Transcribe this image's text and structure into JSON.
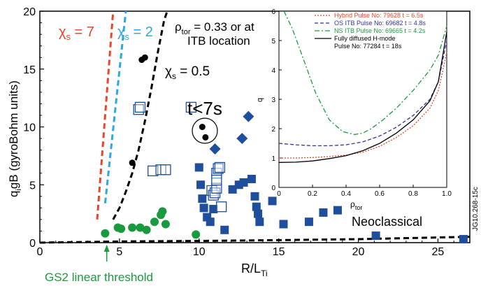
{
  "chart_data": [
    {
      "type": "scatter",
      "xlabel": "R/L",
      "xlabel_sub": "Ti",
      "ylabel": "q",
      "ylabel_sub": "i",
      "ylabel_rest": "gB (gyroBohm units)",
      "xlim": [
        0,
        27
      ],
      "ylim": [
        0,
        20
      ],
      "xticks": [
        0,
        5,
        10,
        15,
        20,
        25
      ],
      "yticks": [
        0,
        5,
        10,
        15,
        20
      ],
      "grid": false,
      "series": [
        {
          "style": "green-filled-circle",
          "color": "#1a9a3e",
          "points": [
            [
              4.1,
              0.8
            ],
            [
              4.9,
              1.3
            ],
            [
              5.1,
              1.2
            ],
            [
              5.8,
              1.3
            ],
            [
              6.3,
              1.3
            ],
            [
              6.7,
              1.1
            ],
            [
              7.2,
              1.8
            ],
            [
              7.6,
              2.4
            ],
            [
              7.7,
              2.7
            ],
            [
              7.9,
              1.6
            ],
            [
              9.8,
              0.7
            ]
          ]
        },
        {
          "style": "blue-filled-square",
          "color": "#1f4e9c",
          "points": [
            [
              10.0,
              6.5
            ],
            [
              10.1,
              5.0
            ],
            [
              10.2,
              3.8
            ],
            [
              10.3,
              3.0
            ],
            [
              10.5,
              2.2
            ],
            [
              10.7,
              1.8
            ],
            [
              10.9,
              2.9
            ],
            [
              11.6,
              1.1
            ],
            [
              12.1,
              4.6
            ],
            [
              12.5,
              5.0
            ],
            [
              12.8,
              5.2
            ],
            [
              13.3,
              5.5
            ],
            [
              13.5,
              4.0
            ],
            [
              13.6,
              3.1
            ],
            [
              13.7,
              2.5
            ],
            [
              13.8,
              1.8
            ],
            [
              14.6,
              3.6
            ],
            [
              15.3,
              1.6
            ],
            [
              16.9,
              1.8
            ],
            [
              17.8,
              2.6
            ],
            [
              18.7,
              2.8
            ],
            [
              21.1,
              0.6
            ],
            [
              26.6,
              0.3
            ]
          ]
        },
        {
          "style": "blue-filled-diamond",
          "color": "#1f4e9c",
          "points": [
            [
              11.0,
              8.1
            ],
            [
              12.7,
              9.0
            ],
            [
              13.1,
              10.9
            ]
          ]
        },
        {
          "style": "blue-open-square",
          "color": "#1f4e9c",
          "points": [
            [
              6.2,
              11.5
            ],
            [
              6.3,
              11.7
            ],
            [
              7.1,
              6.2
            ],
            [
              7.6,
              6.3
            ],
            [
              7.9,
              6.3
            ],
            [
              9.5,
              11.7
            ],
            [
              10.8,
              4.5
            ],
            [
              10.9,
              4.1
            ],
            [
              11.0,
              4.3
            ],
            [
              11.1,
              4.7
            ],
            [
              11.1,
              6.0
            ],
            [
              11.2,
              6.4
            ],
            [
              11.3,
              6.5
            ],
            [
              11.1,
              5.4
            ],
            [
              11.4,
              3.1
            ],
            [
              15.8,
              5.8
            ]
          ]
        },
        {
          "style": "black-filled-circle",
          "color": "#000000",
          "points": [
            [
              6.4,
              15.8
            ],
            [
              6.6,
              16.0
            ],
            [
              5.8,
              6.9
            ],
            [
              10.2,
              10.0
            ],
            [
              10.4,
              9.1
            ]
          ]
        }
      ],
      "lines": [
        {
          "label": "χs = 7",
          "color": "#e8442a",
          "style": "dashed",
          "points": [
            [
              3.6,
              2.0
            ],
            [
              4.6,
              20.0
            ]
          ]
        },
        {
          "label": "χs = 2",
          "color": "#2aa8e0",
          "style": "dashed",
          "points": [
            [
              4.1,
              3.4
            ],
            [
              5.4,
              20.0
            ]
          ]
        },
        {
          "label": "χs = 0.5",
          "color": "#000000",
          "style": "dashed",
          "points": [
            [
              4.6,
              2.0
            ],
            [
              5.0,
              3.0
            ],
            [
              5.4,
              4.4
            ],
            [
              5.8,
              6.0
            ],
            [
              6.2,
              8.0
            ],
            [
              6.6,
              10.5
            ],
            [
              7.0,
              13.3
            ],
            [
              7.4,
              16.4
            ],
            [
              7.8,
              19.2
            ],
            [
              8.0,
              20.5
            ]
          ]
        },
        {
          "label": "Neoclassical",
          "color": "#000000",
          "style": "dashed",
          "points": [
            [
              0,
              0.0
            ],
            [
              5,
              0.1
            ],
            [
              10,
              0.15
            ],
            [
              15,
              0.22
            ],
            [
              20,
              0.3
            ],
            [
              25,
              0.45
            ],
            [
              27,
              0.5
            ]
          ]
        }
      ],
      "annotations": {
        "chi7": "χ",
        "chi7_sub": "s",
        "chi7_rest": " = 7",
        "chi2": "χ",
        "chi2_sub": "s",
        "chi2_rest": " = 2",
        "chi05": "χ",
        "chi05_sub": "s",
        "chi05_rest": " = 0.5",
        "rho_line1": "ρ",
        "rho_sub": "tor",
        "rho_rest": " = 0.33 or at",
        "rho_line2": "ITB location",
        "tlt7": "t<7s",
        "neoclassical": "Neoclassical",
        "gs2": "GS2 linear threshold",
        "gs2_x": 4.2,
        "figure_id": "JG10.268-15c"
      }
    },
    {
      "type": "line",
      "xlabel": "ρ",
      "xlabel_sub": "tor",
      "ylabel": "q",
      "xlim": [
        0,
        1
      ],
      "ylim": [
        0,
        6
      ],
      "xticks": [
        0,
        0.2,
        0.4,
        0.6,
        0.8,
        1.0
      ],
      "yticks": [
        0,
        1,
        2,
        3,
        4,
        5,
        6
      ],
      "legend_position": "top-right",
      "series": [
        {
          "name": "Hybrid Pulse No: 79628 t = 6.5s",
          "color": "#e8442a",
          "style": "dotted",
          "x": [
            0.0,
            0.1,
            0.2,
            0.3,
            0.4,
            0.5,
            0.6,
            0.7,
            0.8,
            0.9,
            0.95,
            1.0
          ],
          "y": [
            1.0,
            1.0,
            1.02,
            1.05,
            1.1,
            1.2,
            1.4,
            1.7,
            2.1,
            2.7,
            3.3,
            4.6
          ]
        },
        {
          "name": "OS ITB Pulse No: 69682 t = 4.8s",
          "color": "#3030a0",
          "style": "dashed",
          "x": [
            0.0,
            0.1,
            0.2,
            0.3,
            0.4,
            0.5,
            0.6,
            0.7,
            0.8,
            0.9,
            0.95,
            1.0
          ],
          "y": [
            1.5,
            1.45,
            1.42,
            1.42,
            1.45,
            1.55,
            1.75,
            2.05,
            2.45,
            3.0,
            3.6,
            5.0
          ]
        },
        {
          "name": "NS ITB Pulse No: 69665 t = 4.2s",
          "color": "#1a9a3e",
          "style": "dashdot",
          "x": [
            0.03,
            0.08,
            0.15,
            0.22,
            0.3,
            0.38,
            0.45,
            0.5,
            0.55,
            0.62,
            0.7,
            0.8,
            0.9,
            0.95,
            1.0
          ],
          "y": [
            6.0,
            5.4,
            4.3,
            3.2,
            2.3,
            1.9,
            1.8,
            1.85,
            2.0,
            2.3,
            2.7,
            3.3,
            4.0,
            4.5,
            5.5
          ]
        },
        {
          "name": "Fully diffused H-mode",
          "name_line2": "Pulse No: 77284 t = 18s",
          "color": "#000000",
          "style": "solid",
          "x": [
            0.0,
            0.1,
            0.2,
            0.3,
            0.4,
            0.5,
            0.6,
            0.7,
            0.8,
            0.9,
            0.95,
            1.0
          ],
          "y": [
            0.85,
            0.86,
            0.9,
            0.98,
            1.08,
            1.25,
            1.5,
            1.85,
            2.3,
            2.95,
            3.6,
            5.3
          ]
        }
      ]
    }
  ]
}
